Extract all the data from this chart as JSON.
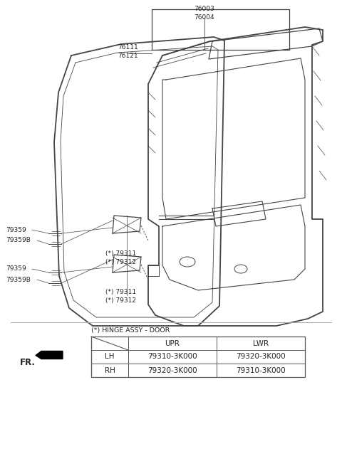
{
  "bg_color": "#ffffff",
  "label_76003_76004": "76003\n76004",
  "label_76111_76121": "76111\n76121",
  "label_79359_upper": "79359",
  "label_79359B_upper": "79359B",
  "label_79311_upper": "(*) 79311",
  "label_79312_upper": "(*) 79312",
  "label_79359_lower": "79359",
  "label_79359B_lower": "79359B",
  "label_79311_lower": "(*) 79311",
  "label_79312_lower": "(*) 79312",
  "table_title": "(*) HINGE ASSY - DOOR",
  "fr_label": "FR.",
  "table_headers": [
    "",
    "UPR",
    "LWR"
  ],
  "table_rows": [
    [
      "LH",
      "79310-3K000",
      "79320-3K000"
    ],
    [
      "RH",
      "79320-3K000",
      "79310-3K000"
    ]
  ],
  "line_color": "#444444",
  "text_color": "#222222",
  "table_line_color": "#555555",
  "sep_line_color": "#aaaaaa"
}
